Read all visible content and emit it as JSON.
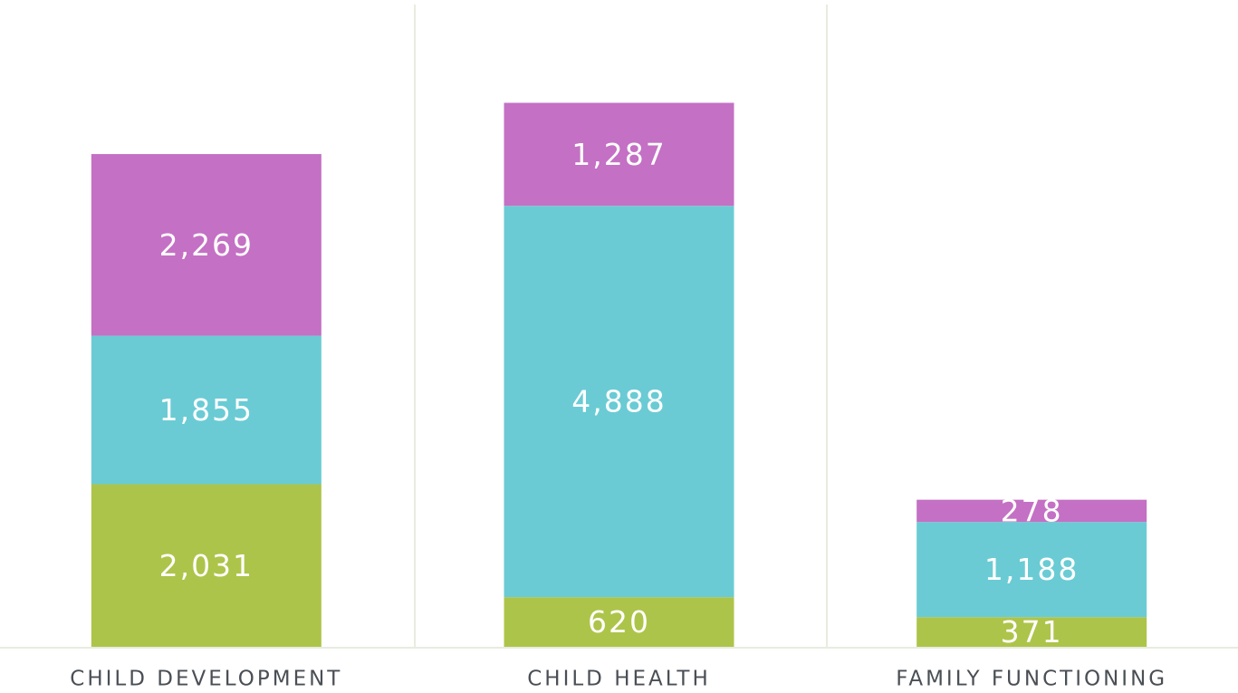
{
  "chart_data": {
    "type": "stacked_bar",
    "categories": [
      "CHILD DEVELOPMENT",
      "CHILD HEALTH",
      "FAMILY FUNCTIONING"
    ],
    "series": [
      {
        "color": "#adc44a",
        "values": [
          2031,
          620,
          371
        ],
        "value_labels": [
          "2,031",
          "620",
          "371"
        ]
      },
      {
        "color": "#6acbd4",
        "values": [
          1855,
          4888,
          1188
        ],
        "value_labels": [
          "1,855",
          "4,888",
          "1,188"
        ]
      },
      {
        "color": "#c470c4",
        "values": [
          2269,
          1287,
          278
        ],
        "value_labels": [
          "2,269",
          "1,287",
          "278"
        ]
      }
    ],
    "ylim": [
      0,
      8000
    ]
  }
}
